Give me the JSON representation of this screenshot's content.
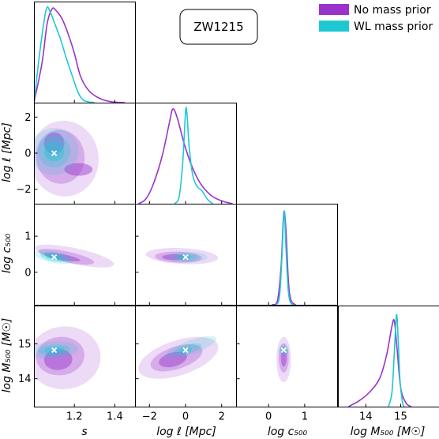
{
  "chart_data": {
    "type": "corner",
    "title": "ZW1215",
    "colors": {
      "no_prior": "#9933cc",
      "wl_prior": "#1ec8d2"
    },
    "legend": {
      "placement": "top-right",
      "entries": [
        "No mass prior",
        "WL mass prior"
      ]
    },
    "parameters": [
      "s",
      "log ℓ [Mpc]",
      "log c500",
      "log M500 [M⊙]"
    ],
    "axis_labels": {
      "x": [
        "s",
        "log ℓ [Mpc]",
        "log c₅₀₀",
        "log M₅₀₀ [M☉]"
      ],
      "y": [
        "log ℓ [Mpc]",
        "log c₅₀₀",
        "log M₅₀₀ [M☉]"
      ]
    },
    "ranges": [
      [
        1.0,
        1.5
      ],
      [
        -2.8,
        2.8
      ],
      [
        -0.9,
        1.9
      ],
      [
        13.2,
        16.1
      ]
    ],
    "x_ticks": [
      {
        "values": [
          1.2,
          1.4
        ],
        "labels": [
          "1.2",
          "1.4"
        ]
      },
      {
        "values": [
          -2,
          0,
          2
        ],
        "labels": [
          "−2",
          "0",
          "2"
        ]
      },
      {
        "values": [
          0,
          1
        ],
        "labels": [
          "0",
          "1"
        ]
      },
      {
        "values": [
          14,
          15
        ],
        "labels": [
          "14",
          "15"
        ]
      }
    ],
    "y_ticks": [
      {
        "values": [
          -2,
          0,
          2
        ],
        "labels": [
          "−2",
          "0",
          "2"
        ]
      },
      {
        "values": [
          0,
          1
        ],
        "labels": [
          "0",
          "1"
        ]
      },
      {
        "values": [
          14,
          15
        ],
        "labels": [
          "14",
          "15"
        ]
      }
    ],
    "best_fit": [
      1.1,
      0.0,
      0.42,
      14.82
    ],
    "marginals": [
      {
        "no_prior": [
          [
            1.0,
            0.0
          ],
          [
            1.04,
            0.42
          ],
          [
            1.065,
            0.83
          ],
          [
            1.09,
            0.99
          ],
          [
            1.11,
            0.97
          ],
          [
            1.14,
            0.88
          ],
          [
            1.17,
            0.72
          ],
          [
            1.2,
            0.52
          ],
          [
            1.23,
            0.28
          ],
          [
            1.27,
            0.13
          ],
          [
            1.32,
            0.05
          ],
          [
            1.38,
            0.01
          ],
          [
            1.45,
            0.0
          ]
        ],
        "wl_prior": [
          [
            1.0,
            0.0
          ],
          [
            1.03,
            0.55
          ],
          [
            1.06,
            0.98
          ],
          [
            1.08,
            0.96
          ],
          [
            1.1,
            0.85
          ],
          [
            1.13,
            0.68
          ],
          [
            1.16,
            0.47
          ],
          [
            1.19,
            0.28
          ],
          [
            1.22,
            0.1
          ],
          [
            1.25,
            0.02
          ],
          [
            1.3,
            0.0
          ]
        ]
      },
      {
        "no_prior": [
          [
            -2.6,
            0.0
          ],
          [
            -2.2,
            0.05
          ],
          [
            -1.8,
            0.2
          ],
          [
            -1.3,
            0.5
          ],
          [
            -0.9,
            0.85
          ],
          [
            -0.7,
            1.0
          ],
          [
            -0.45,
            0.9
          ],
          [
            -0.1,
            0.65
          ],
          [
            0.3,
            0.42
          ],
          [
            0.8,
            0.22
          ],
          [
            1.4,
            0.09
          ],
          [
            2.0,
            0.03
          ],
          [
            2.6,
            0.0
          ]
        ],
        "wl_prior": [
          [
            -0.6,
            0.0
          ],
          [
            -0.35,
            0.08
          ],
          [
            -0.15,
            0.45
          ],
          [
            0.0,
            0.97
          ],
          [
            0.08,
            0.95
          ],
          [
            0.2,
            0.6
          ],
          [
            0.4,
            0.3
          ],
          [
            0.65,
            0.18
          ],
          [
            0.9,
            0.14
          ],
          [
            1.2,
            0.05
          ],
          [
            1.5,
            0.0
          ]
        ]
      },
      {
        "no_prior": [
          [
            0.1,
            0.0
          ],
          [
            0.25,
            0.05
          ],
          [
            0.35,
            0.42
          ],
          [
            0.42,
            0.97
          ],
          [
            0.48,
            0.8
          ],
          [
            0.55,
            0.25
          ],
          [
            0.62,
            0.05
          ],
          [
            0.75,
            0.0
          ]
        ],
        "wl_prior": [
          [
            0.2,
            0.0
          ],
          [
            0.3,
            0.08
          ],
          [
            0.37,
            0.5
          ],
          [
            0.43,
            0.99
          ],
          [
            0.48,
            0.62
          ],
          [
            0.54,
            0.18
          ],
          [
            0.6,
            0.03
          ],
          [
            0.7,
            0.0
          ]
        ]
      },
      {
        "no_prior": [
          [
            13.5,
            0.0
          ],
          [
            13.8,
            0.06
          ],
          [
            14.1,
            0.15
          ],
          [
            14.4,
            0.3
          ],
          [
            14.6,
            0.55
          ],
          [
            14.75,
            0.85
          ],
          [
            14.82,
            0.9
          ],
          [
            14.9,
            0.6
          ],
          [
            15.0,
            0.2
          ],
          [
            15.15,
            0.04
          ],
          [
            15.3,
            0.0
          ]
        ],
        "wl_prior": [
          [
            14.65,
            0.0
          ],
          [
            14.75,
            0.15
          ],
          [
            14.82,
            0.58
          ],
          [
            14.88,
            0.97
          ],
          [
            14.93,
            0.7
          ],
          [
            14.98,
            0.28
          ],
          [
            15.05,
            0.05
          ],
          [
            15.1,
            0.0
          ]
        ]
      }
    ],
    "contours": [
      {
        "row": 1,
        "col": 0,
        "no_prior": [
          {
            "level": 3,
            "center": [
              1.15,
              -0.3
            ],
            "radii": [
              0.17,
              2.1
            ],
            "angle": -6
          },
          {
            "level": 2,
            "center": [
              1.13,
              -0.2
            ],
            "radii": [
              0.12,
              1.5
            ],
            "angle": -8
          },
          {
            "level": 1,
            "center": [
              1.1,
              0.55
            ],
            "radii": [
              0.05,
              0.6
            ],
            "angle": 0
          },
          {
            "level": 1,
            "center": [
              1.22,
              -0.9
            ],
            "radii": [
              0.07,
              0.35
            ],
            "angle": 0
          }
        ],
        "wl_prior": [
          {
            "level": 3,
            "center": [
              1.1,
              0.1
            ],
            "radii": [
              0.12,
              1.3
            ],
            "angle": -8
          },
          {
            "level": 2,
            "center": [
              1.1,
              0.1
            ],
            "radii": [
              0.08,
              0.9
            ],
            "angle": -10
          },
          {
            "level": 1,
            "center": [
              1.1,
              0.1
            ],
            "radii": [
              0.05,
              0.55
            ],
            "angle": -10
          }
        ]
      },
      {
        "row": 2,
        "col": 0,
        "no_prior": [
          {
            "level": 3,
            "center": [
              1.2,
              0.45
            ],
            "radii": [
              0.2,
              0.22
            ],
            "angle": 12
          },
          {
            "level": 2,
            "center": [
              1.16,
              0.43
            ],
            "radii": [
              0.14,
              0.15
            ],
            "angle": 12
          },
          {
            "level": 1,
            "center": [
              1.14,
              0.42
            ],
            "radii": [
              0.09,
              0.08
            ],
            "angle": 10
          }
        ],
        "wl_prior": [
          {
            "level": 3,
            "center": [
              1.1,
              0.42
            ],
            "radii": [
              0.1,
              0.16
            ],
            "angle": 10
          },
          {
            "level": 2,
            "center": [
              1.1,
              0.42
            ],
            "radii": [
              0.07,
              0.12
            ],
            "angle": 10
          },
          {
            "level": 1,
            "center": [
              1.1,
              0.42
            ],
            "radii": [
              0.04,
              0.07
            ],
            "angle": 8
          }
        ]
      },
      {
        "row": 3,
        "col": 0,
        "no_prior": [
          {
            "level": 3,
            "center": [
              1.15,
              14.6
            ],
            "radii": [
              0.18,
              0.9
            ],
            "angle": -6
          },
          {
            "level": 2,
            "center": [
              1.13,
              14.65
            ],
            "radii": [
              0.12,
              0.55
            ],
            "angle": -6
          },
          {
            "level": 1,
            "center": [
              1.12,
              14.55
            ],
            "radii": [
              0.07,
              0.3
            ],
            "angle": -4
          }
        ],
        "wl_prior": [
          {
            "level": 3,
            "center": [
              1.1,
              14.82
            ],
            "radii": [
              0.12,
              0.25
            ],
            "angle": -4
          },
          {
            "level": 2,
            "center": [
              1.1,
              14.82
            ],
            "radii": [
              0.08,
              0.16
            ],
            "angle": -4
          },
          {
            "level": 1,
            "center": [
              1.1,
              14.82
            ],
            "radii": [
              0.05,
              0.1
            ],
            "angle": -4
          }
        ]
      },
      {
        "row": 2,
        "col": 1,
        "no_prior": [
          {
            "level": 3,
            "center": [
              -0.2,
              0.45
            ],
            "radii": [
              2.0,
              0.22
            ],
            "angle": 3
          },
          {
            "level": 2,
            "center": [
              -0.4,
              0.42
            ],
            "radii": [
              1.3,
              0.15
            ],
            "angle": 2
          },
          {
            "level": 1,
            "center": [
              -0.6,
              0.42
            ],
            "radii": [
              0.7,
              0.08
            ],
            "angle": 0
          }
        ],
        "wl_prior": [
          {
            "level": 3,
            "center": [
              0.1,
              0.42
            ],
            "radii": [
              1.1,
              0.15
            ],
            "angle": 0
          },
          {
            "level": 2,
            "center": [
              0.05,
              0.42
            ],
            "radii": [
              0.6,
              0.1
            ],
            "angle": 0
          },
          {
            "level": 1,
            "center": [
              0.0,
              0.42
            ],
            "radii": [
              0.3,
              0.07
            ],
            "angle": 0
          }
        ]
      },
      {
        "row": 3,
        "col": 1,
        "no_prior": [
          {
            "level": 3,
            "center": [
              -0.4,
              14.6
            ],
            "radii": [
              2.3,
              0.5
            ],
            "angle": -18
          },
          {
            "level": 2,
            "center": [
              -0.5,
              14.6
            ],
            "radii": [
              1.5,
              0.32
            ],
            "angle": -18
          },
          {
            "level": 1,
            "center": [
              -0.7,
              14.55
            ],
            "radii": [
              0.8,
              0.2
            ],
            "angle": -15
          }
        ],
        "wl_prior": [
          {
            "level": 3,
            "center": [
              0.3,
              14.9
            ],
            "radii": [
              1.5,
              0.2
            ],
            "angle": -20
          },
          {
            "level": 2,
            "center": [
              0.1,
              14.85
            ],
            "radii": [
              0.8,
              0.13
            ],
            "angle": -15
          },
          {
            "level": 1,
            "center": [
              0.0,
              14.82
            ],
            "radii": [
              0.35,
              0.08
            ],
            "angle": -10
          }
        ]
      },
      {
        "row": 3,
        "col": 2,
        "no_prior": [
          {
            "level": 3,
            "center": [
              0.42,
              14.55
            ],
            "radii": [
              0.2,
              0.65
            ],
            "angle": 0
          },
          {
            "level": 2,
            "center": [
              0.42,
              14.6
            ],
            "radii": [
              0.14,
              0.42
            ],
            "angle": 0
          },
          {
            "level": 1,
            "center": [
              0.42,
              14.6
            ],
            "radii": [
              0.08,
              0.25
            ],
            "angle": 0
          }
        ],
        "wl_prior": [
          {
            "level": 3,
            "center": [
              0.42,
              14.82
            ],
            "radii": [
              0.14,
              0.16
            ],
            "angle": 0
          },
          {
            "level": 2,
            "center": [
              0.42,
              14.82
            ],
            "radii": [
              0.1,
              0.11
            ],
            "angle": 0
          },
          {
            "level": 1,
            "center": [
              0.42,
              14.82
            ],
            "radii": [
              0.06,
              0.07
            ],
            "angle": 0
          }
        ]
      }
    ]
  }
}
